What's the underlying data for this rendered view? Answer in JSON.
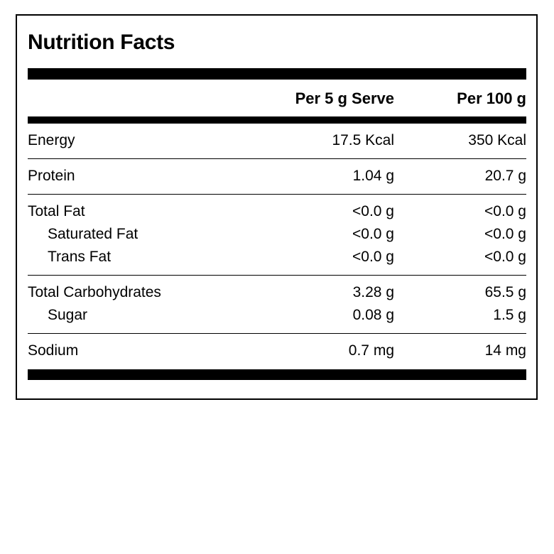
{
  "label": {
    "title": "Nutrition Facts",
    "columns": {
      "per_serve": "Per 5 g Serve",
      "per_100g": "Per 100 g"
    },
    "sections": [
      {
        "rows": [
          {
            "name": "Energy",
            "per_serve": "17.5 Kcal",
            "per_100g": "350 Kcal",
            "indent": false
          }
        ]
      },
      {
        "rows": [
          {
            "name": "Protein",
            "per_serve": "1.04 g",
            "per_100g": "20.7 g",
            "indent": false
          }
        ]
      },
      {
        "rows": [
          {
            "name": "Total Fat",
            "per_serve": "<0.0 g",
            "per_100g": "<0.0 g",
            "indent": false
          },
          {
            "name": "Saturated Fat",
            "per_serve": "<0.0 g",
            "per_100g": "<0.0 g",
            "indent": true
          },
          {
            "name": "Trans Fat",
            "per_serve": "<0.0 g",
            "per_100g": "<0.0 g",
            "indent": true
          }
        ]
      },
      {
        "rows": [
          {
            "name": "Total Carbohydrates",
            "per_serve": "3.28 g",
            "per_100g": "65.5 g",
            "indent": false
          },
          {
            "name": "Sugar",
            "per_serve": "0.08 g",
            "per_100g": "1.5 g",
            "indent": true
          }
        ]
      },
      {
        "rows": [
          {
            "name": "Sodium",
            "per_serve": "0.7 mg",
            "per_100g": "14 mg",
            "indent": false
          }
        ]
      }
    ],
    "colors": {
      "text": "#000000",
      "background": "#ffffff",
      "border": "#000000",
      "bars": "#000000"
    }
  }
}
